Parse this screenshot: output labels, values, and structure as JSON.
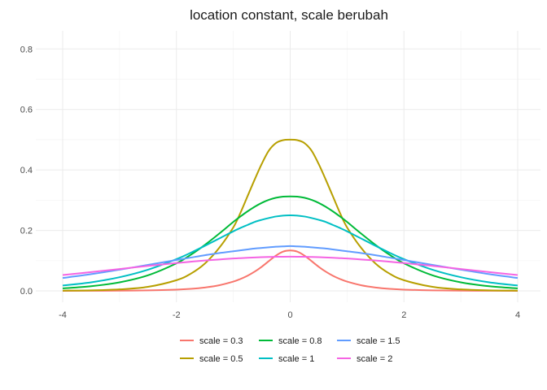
{
  "chart_data": {
    "type": "line",
    "title": "location constant, scale berubah",
    "xlabel": "",
    "ylabel": "",
    "xlim": [
      -4,
      4
    ],
    "ylim": [
      0,
      0.833
    ],
    "x_ticks": [
      -4,
      -2,
      0,
      2,
      4
    ],
    "y_ticks": [
      0.0,
      0.2,
      0.4,
      0.6,
      0.8
    ],
    "x_tick_labels": [
      "-4",
      "-2",
      "0",
      "2",
      "4"
    ],
    "y_tick_labels": [
      "0.0",
      "0.2",
      "0.4",
      "0.6",
      "0.8"
    ],
    "grid": true,
    "legend_position": "bottom",
    "x": [
      -4,
      -3.5,
      -3,
      -2.5,
      -2,
      -1.75,
      -1.5,
      -1.25,
      -1,
      -0.875,
      -0.75,
      -0.625,
      -0.5,
      -0.375,
      -0.25,
      -0.125,
      0,
      0.125,
      0.25,
      0.375,
      0.5,
      0.625,
      0.75,
      0.875,
      1,
      1.25,
      1.5,
      1.75,
      2,
      2.5,
      3,
      3.5,
      4
    ],
    "series": [
      {
        "name": "scale = 0.3",
        "color": "#F8766D",
        "values": [
          0.0001,
          0.0003,
          0.0007,
          0.0016,
          0.0042,
          0.0068,
          0.0112,
          0.0185,
          0.0307,
          0.0393,
          0.0501,
          0.0636,
          0.0799,
          0.0985,
          0.1168,
          0.1299,
          0.1336,
          0.1299,
          0.1168,
          0.0985,
          0.0799,
          0.0636,
          0.0501,
          0.0393,
          0.0307,
          0.0185,
          0.0112,
          0.0068,
          0.0042,
          0.0016,
          0.0007,
          0.0003,
          0.0001
        ]
      },
      {
        "name": "scale = 0.5",
        "color": "#B79F00",
        "values": [
          0.0007,
          0.0018,
          0.0049,
          0.0134,
          0.0353,
          0.0566,
          0.0904,
          0.1416,
          0.21,
          0.258,
          0.313,
          0.368,
          0.42,
          0.464,
          0.489,
          0.4984,
          0.5,
          0.4984,
          0.489,
          0.464,
          0.42,
          0.368,
          0.313,
          0.258,
          0.21,
          0.1416,
          0.0904,
          0.0566,
          0.0353,
          0.0134,
          0.0049,
          0.0018,
          0.0007
        ]
      },
      {
        "name": "scale = 0.8",
        "color": "#00BA38",
        "values": [
          0.0083,
          0.0154,
          0.0283,
          0.0516,
          0.0911,
          0.119,
          0.152,
          0.189,
          0.228,
          0.246,
          0.263,
          0.278,
          0.291,
          0.301,
          0.308,
          0.3117,
          0.3125,
          0.3117,
          0.308,
          0.301,
          0.291,
          0.278,
          0.263,
          0.246,
          0.228,
          0.189,
          0.152,
          0.119,
          0.0911,
          0.0516,
          0.0283,
          0.0154,
          0.0083
        ]
      },
      {
        "name": "scale = 1",
        "color": "#00BFC4",
        "values": [
          0.0177,
          0.0283,
          0.0452,
          0.0701,
          0.105,
          0.126,
          0.149,
          0.173,
          0.197,
          0.208,
          0.218,
          0.228,
          0.235,
          0.241,
          0.246,
          0.249,
          0.25,
          0.249,
          0.246,
          0.241,
          0.235,
          0.228,
          0.218,
          0.208,
          0.197,
          0.173,
          0.149,
          0.126,
          0.105,
          0.0701,
          0.0452,
          0.0283,
          0.0177
        ]
      },
      {
        "name": "scale = 1.5",
        "color": "#619CFF",
        "values": [
          0.0426,
          0.0553,
          0.07,
          0.086,
          0.102,
          0.11,
          0.118,
          0.125,
          0.131,
          0.134,
          0.137,
          0.14,
          0.142,
          0.144,
          0.146,
          0.147,
          0.148,
          0.147,
          0.146,
          0.144,
          0.142,
          0.14,
          0.137,
          0.134,
          0.131,
          0.125,
          0.118,
          0.11,
          0.102,
          0.086,
          0.07,
          0.0553,
          0.0426
        ]
      },
      {
        "name": "scale = 2",
        "color": "#F564E3",
        "values": [
          0.0525,
          0.0622,
          0.0723,
          0.0825,
          0.092,
          0.0964,
          0.1004,
          0.1039,
          0.107,
          0.1083,
          0.1095,
          0.1106,
          0.1114,
          0.1121,
          0.1127,
          0.113,
          0.1131,
          0.113,
          0.1127,
          0.1121,
          0.1114,
          0.1106,
          0.1095,
          0.1083,
          0.107,
          0.1039,
          0.1004,
          0.0964,
          0.092,
          0.0825,
          0.0723,
          0.0622,
          0.0525
        ]
      }
    ]
  }
}
